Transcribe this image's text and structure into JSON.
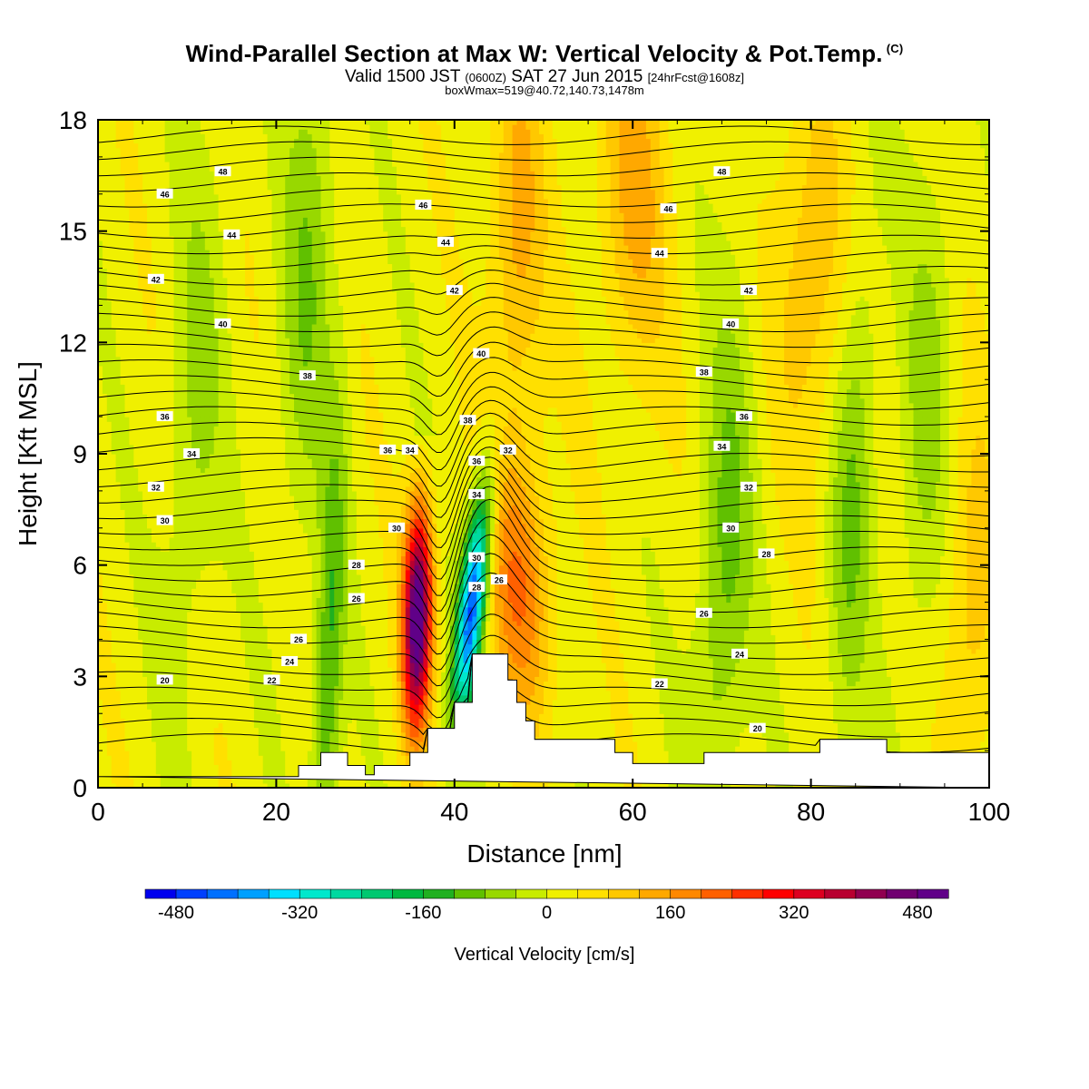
{
  "header": {
    "title": "Wind-Parallel Section at Max W: Vertical Velocity & Pot.Temp.",
    "copyright": "(C)",
    "subtitle_a": "Valid 1500 JST",
    "subtitle_b": "(0600Z)",
    "subtitle_c": "SAT 27 Jun 2015",
    "subtitle_d": "[24hrFcst@1608z]",
    "subtitle2": "boxWmax=519@40.72,140.73,1478m"
  },
  "chart_data": {
    "type": "heatmap",
    "xlabel": "Distance [nm]",
    "ylabel": "Height [Kft MSL]",
    "xlim": [
      0,
      100
    ],
    "ylim": [
      0,
      18
    ],
    "x_ticks": [
      0,
      20,
      40,
      60,
      80,
      100
    ],
    "y_ticks": [
      0,
      3,
      6,
      9,
      12,
      15,
      18
    ],
    "colorbar": {
      "label": "Vertical Velocity [cm/s]",
      "min": -520,
      "max": 520,
      "step": 40,
      "tick_values": [
        -480,
        -320,
        -160,
        0,
        160,
        320,
        480
      ],
      "tick_labels": [
        "-480",
        "-320",
        "-160",
        "0",
        "160",
        "320",
        "480"
      ],
      "colors": [
        "#0000ee",
        "#0040ff",
        "#0070ff",
        "#00a0ff",
        "#00dfff",
        "#00e8cc",
        "#00d9a0",
        "#00c870",
        "#00b840",
        "#20b020",
        "#60c000",
        "#98d800",
        "#c8ec00",
        "#f0f000",
        "#ffe000",
        "#ffc800",
        "#ffa800",
        "#ff8800",
        "#ff6000",
        "#ff3000",
        "#ff0000",
        "#dd0020",
        "#b80030",
        "#900050",
        "#700070",
        "#600088"
      ]
    },
    "contour_field": "Potential Temperature",
    "contour_labels": [
      "48",
      "46",
      "44",
      "42",
      "40",
      "38",
      "36",
      "34",
      "32",
      "30",
      "28",
      "26",
      "24",
      "22",
      "20"
    ],
    "contour_label_marks": [
      {
        "text": "48",
        "x": 14,
        "y": 16.6
      },
      {
        "text": "48",
        "x": 70,
        "y": 16.6
      },
      {
        "text": "46",
        "x": 7.5,
        "y": 16.0
      },
      {
        "text": "46",
        "x": 36.5,
        "y": 15.7
      },
      {
        "text": "46",
        "x": 64,
        "y": 15.6
      },
      {
        "text": "44",
        "x": 15,
        "y": 14.9
      },
      {
        "text": "44",
        "x": 39,
        "y": 14.7
      },
      {
        "text": "44",
        "x": 63,
        "y": 14.4
      },
      {
        "text": "42",
        "x": 6.5,
        "y": 13.7
      },
      {
        "text": "42",
        "x": 40,
        "y": 13.4
      },
      {
        "text": "42",
        "x": 73,
        "y": 13.4
      },
      {
        "text": "40",
        "x": 14,
        "y": 12.5
      },
      {
        "text": "40",
        "x": 43,
        "y": 11.7
      },
      {
        "text": "40",
        "x": 71,
        "y": 12.5
      },
      {
        "text": "38",
        "x": 23.5,
        "y": 11.1
      },
      {
        "text": "38",
        "x": 41.5,
        "y": 9.9
      },
      {
        "text": "38",
        "x": 68,
        "y": 11.2
      },
      {
        "text": "36",
        "x": 7.5,
        "y": 10.0
      },
      {
        "text": "36",
        "x": 32.5,
        "y": 9.1
      },
      {
        "text": "36",
        "x": 42.5,
        "y": 8.8
      },
      {
        "text": "36",
        "x": 72.5,
        "y": 10.0
      },
      {
        "text": "34",
        "x": 10.5,
        "y": 9.0
      },
      {
        "text": "34",
        "x": 35,
        "y": 9.1
      },
      {
        "text": "34",
        "x": 42.5,
        "y": 7.9
      },
      {
        "text": "34",
        "x": 70,
        "y": 9.2
      },
      {
        "text": "32",
        "x": 6.5,
        "y": 8.1
      },
      {
        "text": "32",
        "x": 46,
        "y": 9.1
      },
      {
        "text": "32",
        "x": 73,
        "y": 8.1
      },
      {
        "text": "30",
        "x": 7.5,
        "y": 7.2
      },
      {
        "text": "30",
        "x": 33.5,
        "y": 7.0
      },
      {
        "text": "30",
        "x": 42.5,
        "y": 6.2
      },
      {
        "text": "30",
        "x": 71,
        "y": 7.0
      },
      {
        "text": "28",
        "x": 29,
        "y": 6.0
      },
      {
        "text": "28",
        "x": 42.5,
        "y": 5.4
      },
      {
        "text": "28",
        "x": 75,
        "y": 6.3
      },
      {
        "text": "26",
        "x": 29,
        "y": 5.1
      },
      {
        "text": "26",
        "x": 45,
        "y": 5.6
      },
      {
        "text": "26",
        "x": 68,
        "y": 4.7
      },
      {
        "text": "26",
        "x": 22.5,
        "y": 4.0
      },
      {
        "text": "24",
        "x": 21.5,
        "y": 3.4
      },
      {
        "text": "24",
        "x": 72,
        "y": 3.6
      },
      {
        "text": "22",
        "x": 19.5,
        "y": 2.9
      },
      {
        "text": "22",
        "x": 63,
        "y": 2.8
      },
      {
        "text": "20",
        "x": 7.5,
        "y": 2.9
      },
      {
        "text": "20",
        "x": 74,
        "y": 1.6
      }
    ],
    "features": {
      "updraft_max_cm_s": 519,
      "updraft_center_x_nm": 36,
      "downdraft_center_x_nm": 42
    },
    "grid": false
  }
}
